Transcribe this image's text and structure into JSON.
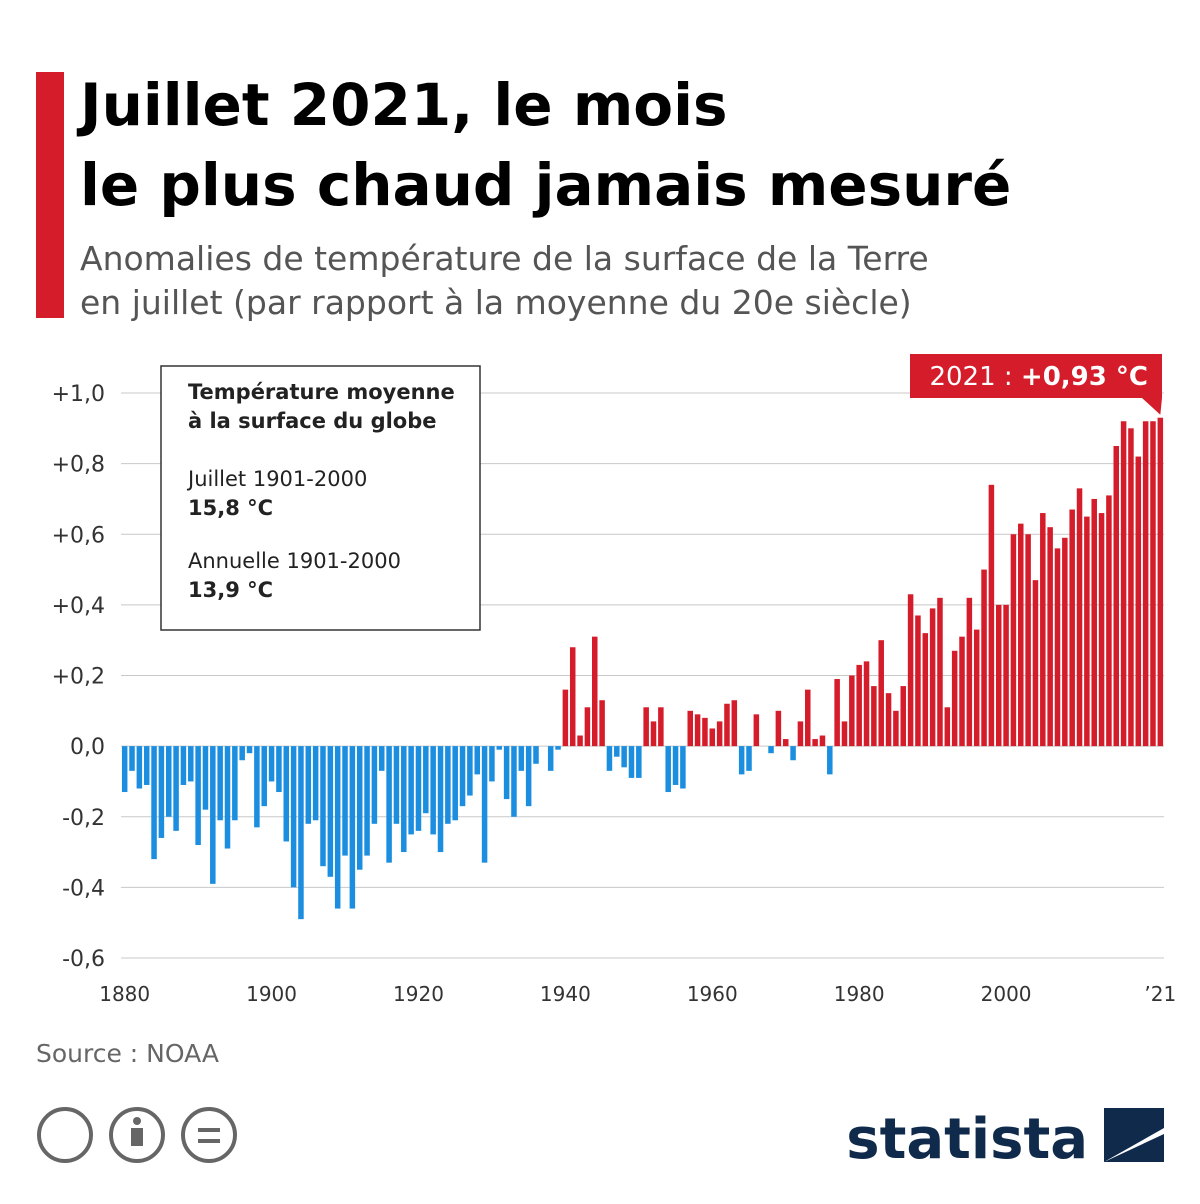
{
  "chart_data": {
    "type": "bar",
    "title_lines": [
      "Juillet 2021, le mois",
      "le plus chaud jamais mesuré"
    ],
    "subtitle_lines": [
      "Anomalies de température de la surface de la Terre",
      "en juillet (par rapport à la moyenne du 20e siècle)"
    ],
    "x": [
      1880,
      1881,
      1882,
      1883,
      1884,
      1885,
      1886,
      1887,
      1888,
      1889,
      1890,
      1891,
      1892,
      1893,
      1894,
      1895,
      1896,
      1897,
      1898,
      1899,
      1900,
      1901,
      1902,
      1903,
      1904,
      1905,
      1906,
      1907,
      1908,
      1909,
      1910,
      1911,
      1912,
      1913,
      1914,
      1915,
      1916,
      1917,
      1918,
      1919,
      1920,
      1921,
      1922,
      1923,
      1924,
      1925,
      1926,
      1927,
      1928,
      1929,
      1930,
      1931,
      1932,
      1933,
      1934,
      1935,
      1936,
      1937,
      1938,
      1939,
      1940,
      1941,
      1942,
      1943,
      1944,
      1945,
      1946,
      1947,
      1948,
      1949,
      1950,
      1951,
      1952,
      1953,
      1954,
      1955,
      1956,
      1957,
      1958,
      1959,
      1960,
      1961,
      1962,
      1963,
      1964,
      1965,
      1966,
      1967,
      1968,
      1969,
      1970,
      1971,
      1972,
      1973,
      1974,
      1975,
      1976,
      1977,
      1978,
      1979,
      1980,
      1981,
      1982,
      1983,
      1984,
      1985,
      1986,
      1987,
      1988,
      1989,
      1990,
      1991,
      1992,
      1993,
      1994,
      1995,
      1996,
      1997,
      1998,
      1999,
      2000,
      2001,
      2002,
      2003,
      2004,
      2005,
      2006,
      2007,
      2008,
      2009,
      2010,
      2011,
      2012,
      2013,
      2014,
      2015,
      2016,
      2017,
      2018,
      2019,
      2020,
      2021
    ],
    "values": [
      -0.13,
      -0.07,
      -0.12,
      -0.11,
      -0.32,
      -0.26,
      -0.2,
      -0.24,
      -0.11,
      -0.1,
      -0.28,
      -0.18,
      -0.39,
      -0.21,
      -0.29,
      -0.21,
      -0.04,
      -0.02,
      -0.23,
      -0.17,
      -0.1,
      -0.13,
      -0.27,
      -0.4,
      -0.49,
      -0.22,
      -0.21,
      -0.34,
      -0.37,
      -0.46,
      -0.31,
      -0.46,
      -0.35,
      -0.31,
      -0.22,
      -0.07,
      -0.33,
      -0.22,
      -0.3,
      -0.25,
      -0.24,
      -0.19,
      -0.25,
      -0.3,
      -0.22,
      -0.21,
      -0.17,
      -0.14,
      -0.08,
      -0.33,
      -0.1,
      -0.01,
      -0.15,
      -0.2,
      -0.07,
      -0.17,
      -0.05,
      0,
      -0.07,
      -0.01,
      0.16,
      0.28,
      0.03,
      0.11,
      0.31,
      0.13,
      -0.07,
      -0.03,
      -0.06,
      -0.09,
      -0.09,
      0.11,
      0.07,
      0.11,
      -0.13,
      -0.11,
      -0.12,
      0.1,
      0.09,
      0.08,
      0.05,
      0.07,
      0.12,
      0.13,
      -0.08,
      -0.07,
      0.09,
      0,
      -0.02,
      0.1,
      0.02,
      -0.04,
      0.07,
      0.16,
      0.02,
      0.03,
      -0.08,
      0.19,
      0.07,
      0.2,
      0.23,
      0.24,
      0.17,
      0.3,
      0.15,
      0.1,
      0.17,
      0.43,
      0.37,
      0.32,
      0.39,
      0.42,
      0.11,
      0.27,
      0.31,
      0.42,
      0.33,
      0.5,
      0.74,
      0.4,
      0.4,
      0.6,
      0.63,
      0.6,
      0.47,
      0.66,
      0.62,
      0.56,
      0.59,
      0.67,
      0.73,
      0.65,
      0.7,
      0.66,
      0.71,
      0.85,
      0.92,
      0.9,
      0.82,
      0.92,
      0.92,
      0.93
    ],
    "color_positive": "#d51c2a",
    "color_negative": "#1b8ee0",
    "xlim": [
      1879.5,
      2021.5
    ],
    "xticks": [
      1880,
      1900,
      1920,
      1940,
      1960,
      1980,
      2000,
      {
        "value": 2021,
        "label": "’21"
      }
    ],
    "ylim": [
      -0.6,
      1.0
    ],
    "yticks": [
      {
        "value": 1.0,
        "label": "+1,0"
      },
      {
        "value": 0.8,
        "label": "+0,8"
      },
      {
        "value": 0.6,
        "label": "+0,6"
      },
      {
        "value": 0.4,
        "label": "+0,4"
      },
      {
        "value": 0.2,
        "label": "+0,2"
      },
      {
        "value": 0,
        "label": "0,0"
      },
      {
        "value": -0.2,
        "label": "-0,2"
      },
      {
        "value": -0.4,
        "label": "-0,4"
      },
      {
        "value": -0.6,
        "label": "-0,6"
      }
    ],
    "grid": true,
    "annotation": {
      "prefix": "2021 : ",
      "value_label": "+0,93 °C"
    },
    "info_box": {
      "heading_lines": [
        "Température moyenne",
        "à la surface du globe"
      ],
      "label1": "Juillet 1901-2000",
      "value1": "15,8 °C",
      "label2": "Annuelle 1901-2000",
      "value2": "13,9 °C"
    },
    "source": "Source : NOAA",
    "brand": "statista"
  }
}
